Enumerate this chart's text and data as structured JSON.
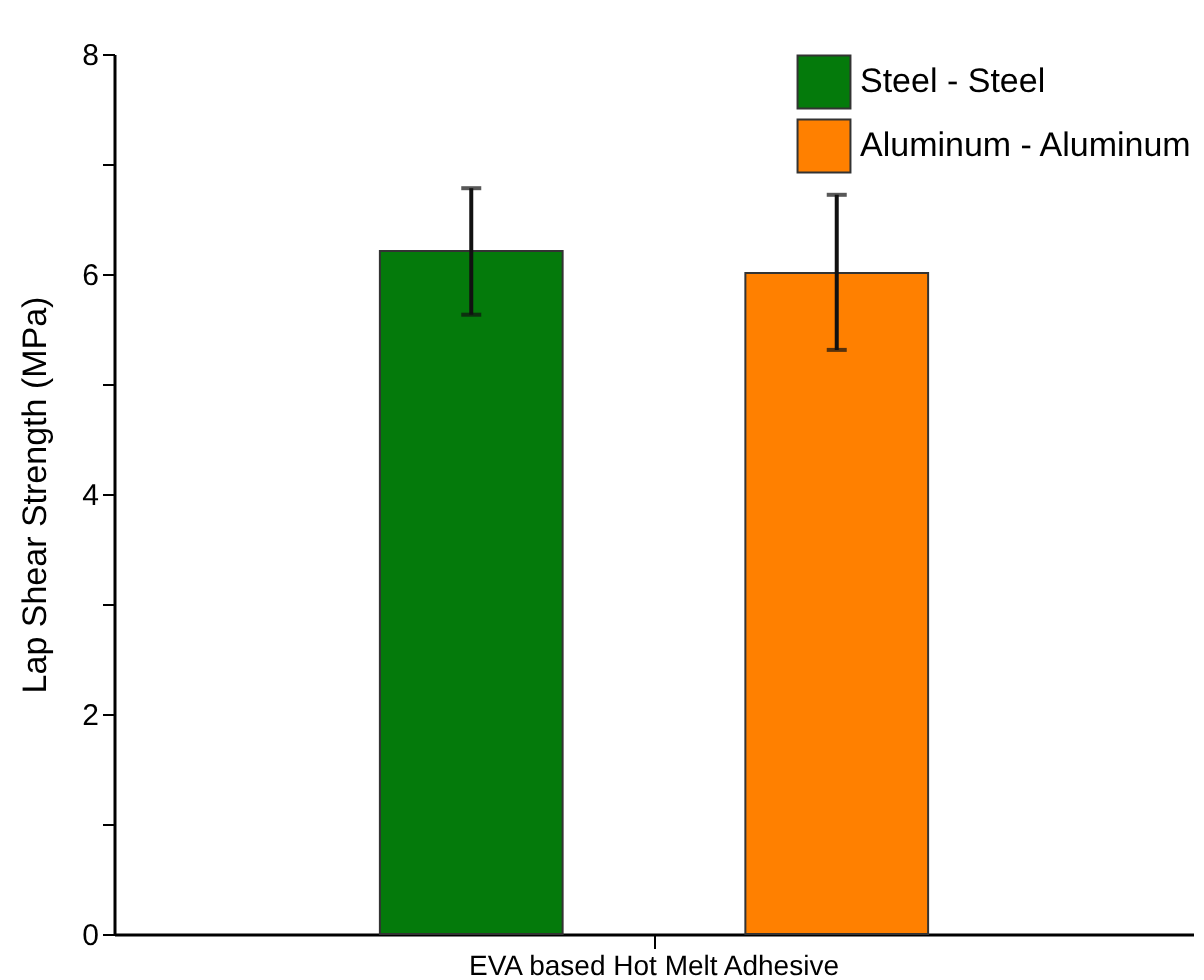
{
  "chart_data": {
    "type": "bar",
    "ylabel": "Lap Shear Strength (MPa)",
    "categories": [
      "EVA based Hot Melt Adhesive"
    ],
    "series": [
      {
        "name": "Steel - Steel",
        "color": "#047a0b",
        "values": [
          6.21
        ],
        "errors": [
          [
            5.63,
            6.78
          ]
        ]
      },
      {
        "name": "Aluminum - Aluminum",
        "color": "#ff8000",
        "values": [
          6.01
        ],
        "errors": [
          [
            5.31,
            6.72
          ]
        ]
      }
    ],
    "ylim": [
      0,
      8
    ],
    "yticks": [
      0,
      {
        "value": 1,
        "label": null
      },
      2,
      {
        "value": 3,
        "label": null
      },
      4,
      {
        "value": 5,
        "label": null
      },
      6,
      {
        "value": 7,
        "label": null
      },
      8
    ],
    "grid": false,
    "legend": "top right"
  }
}
